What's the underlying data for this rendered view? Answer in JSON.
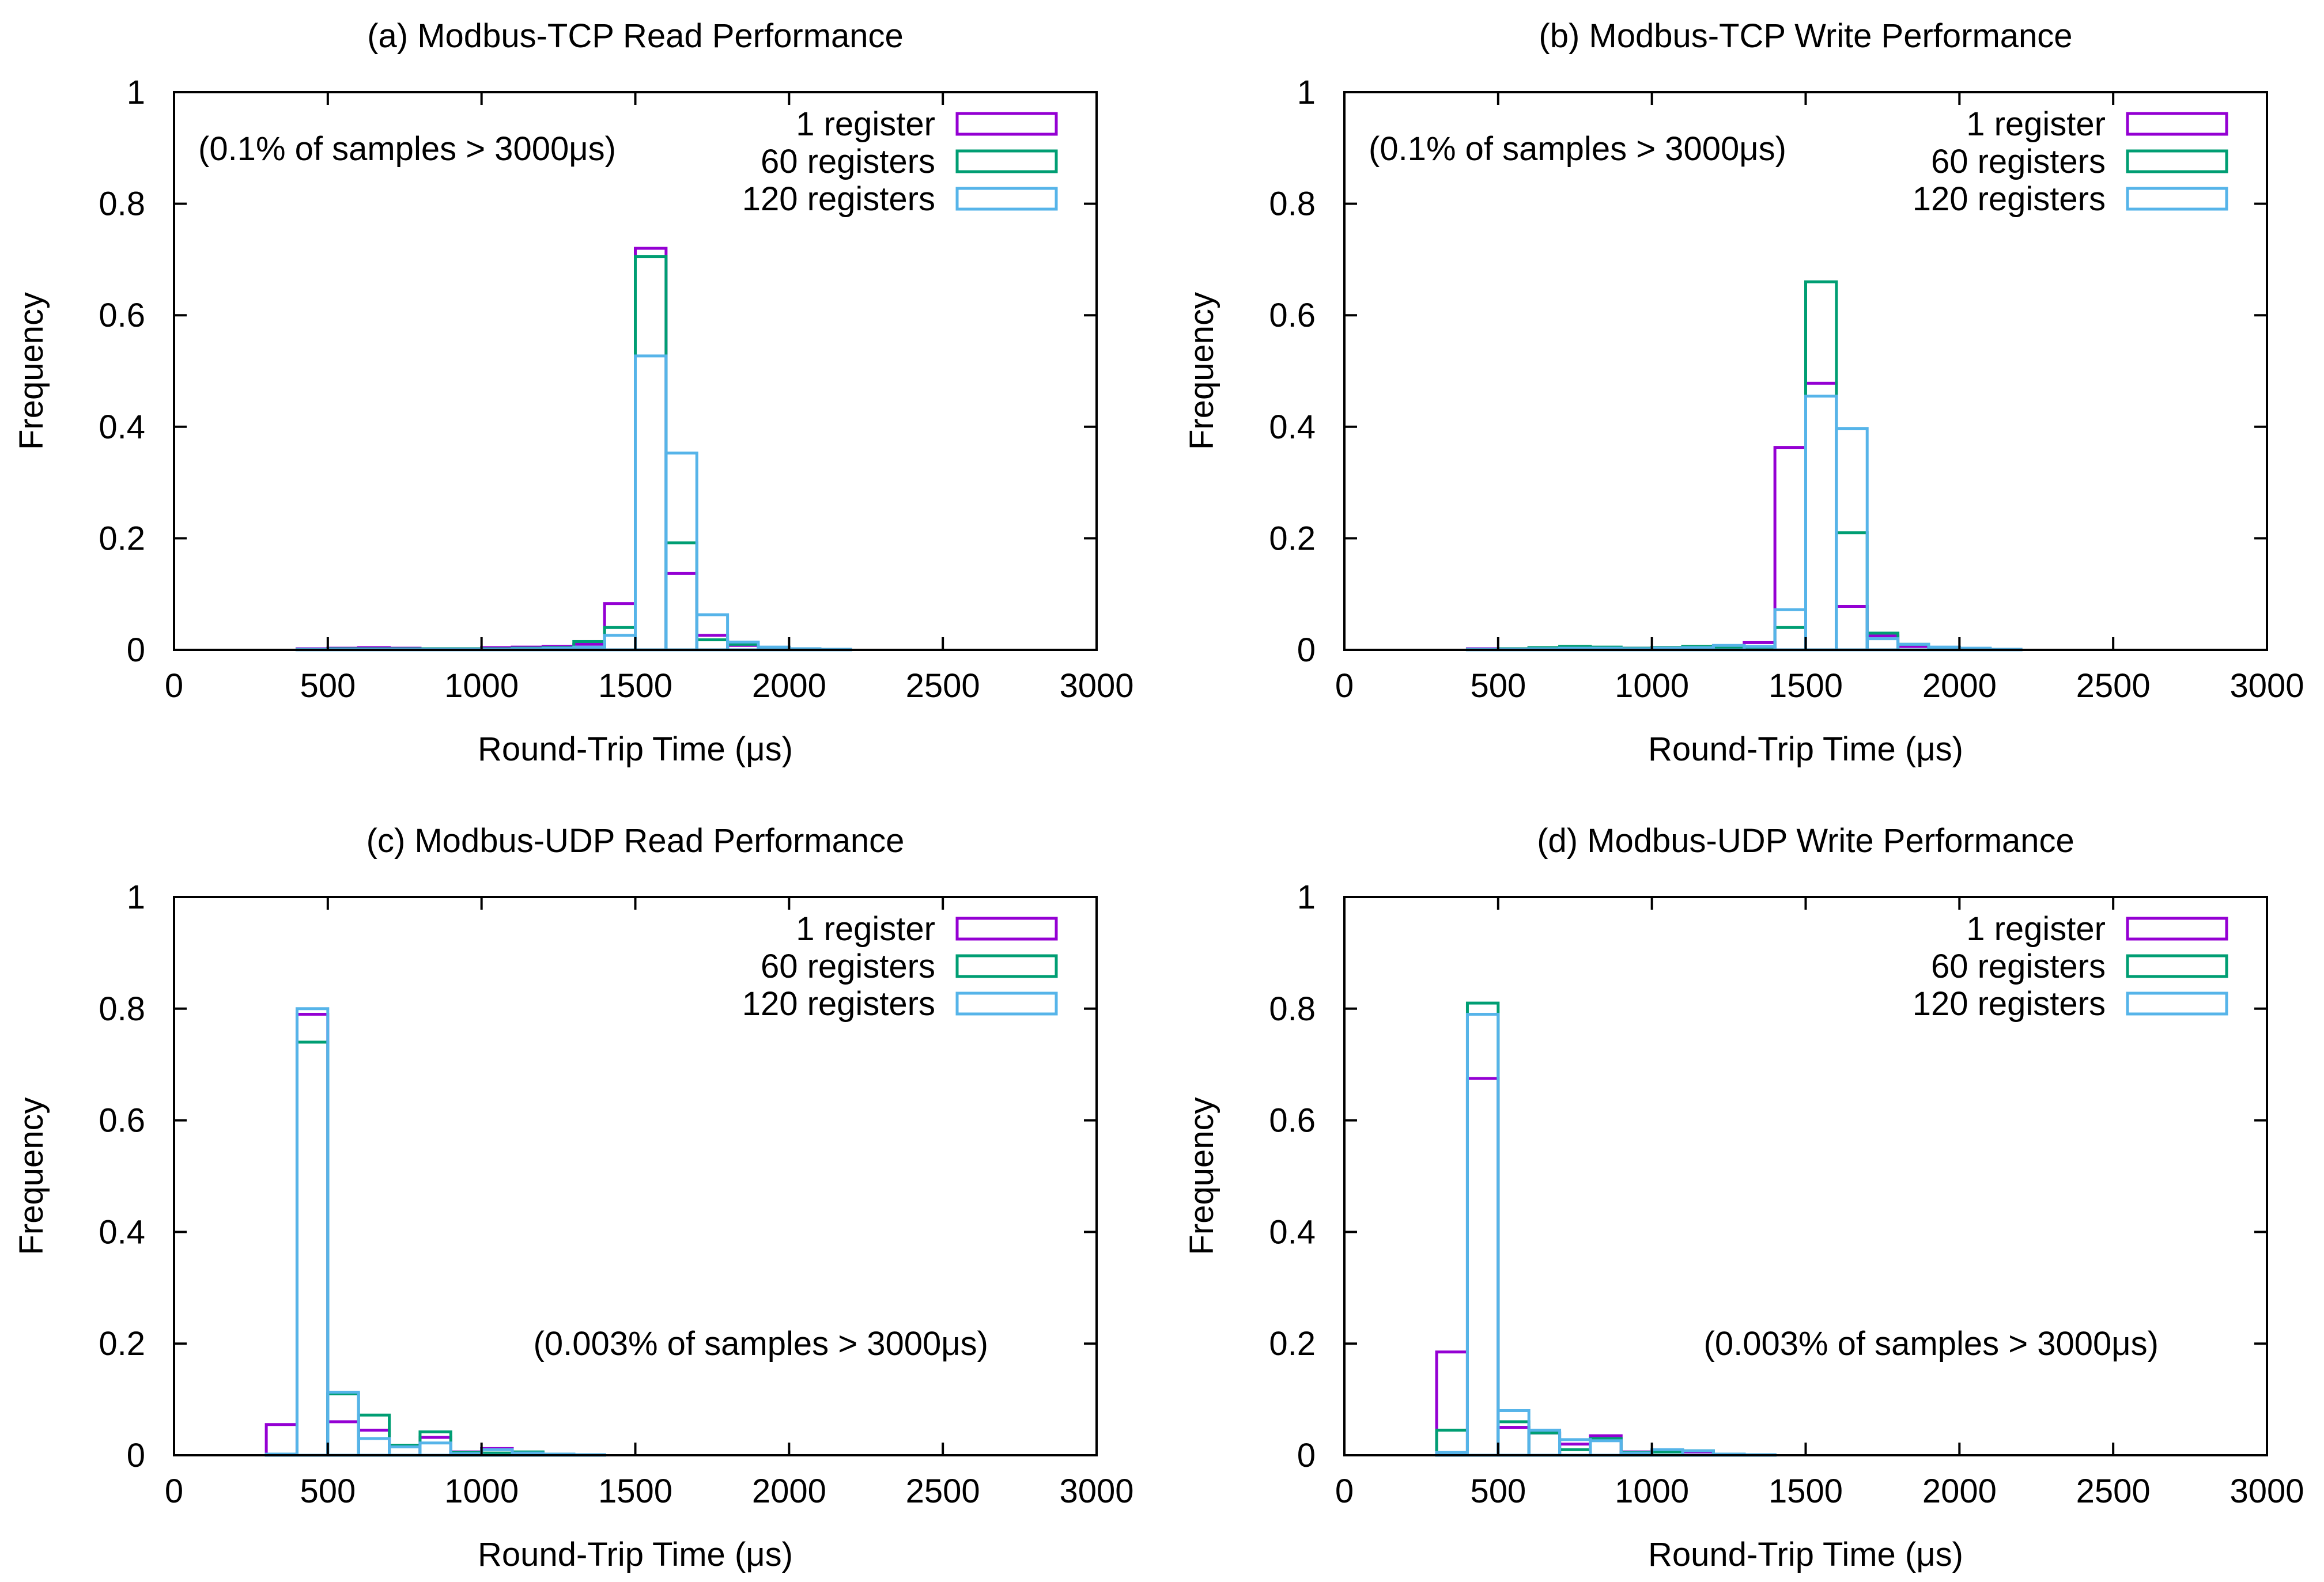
{
  "figure": {
    "colors": {
      "s1": "#9400d3",
      "s60": "#009e73",
      "s120": "#56b4e9"
    }
  },
  "chart_data": [
    {
      "type": "histogram",
      "title": "(a) Modbus-TCP Read Performance",
      "xlabel": "Round-Trip Time (μs)",
      "ylabel": "Frequency",
      "xlim": [
        0,
        3000
      ],
      "ylim": [
        0,
        1
      ],
      "xticks": [
        "0",
        "500",
        "1000",
        "1500",
        "2000",
        "2500",
        "3000"
      ],
      "yticks": [
        "0",
        "0.2",
        "0.4",
        "0.6",
        "0.8",
        "1"
      ],
      "legend_position": "top-right",
      "annotation": "(0.1% of samples > 3000μs)",
      "annotation_position": "top-left",
      "bin_width": 100,
      "bins": [
        400,
        500,
        600,
        700,
        800,
        900,
        1000,
        1100,
        1200,
        1300,
        1400,
        1500,
        1600,
        1700,
        1800,
        1900,
        2000,
        2100
      ],
      "series": [
        {
          "name": "1 register",
          "color": "#9400d3",
          "values": [
            0.002,
            0.003,
            0.004,
            0.003,
            0.002,
            0.002,
            0.004,
            0.005,
            0.006,
            0.01,
            0.083,
            0.72,
            0.137,
            0.026,
            0.008,
            0.004,
            0.002,
            0.001
          ]
        },
        {
          "name": "60 registers",
          "color": "#009e73",
          "values": [
            0.001,
            0.002,
            0.002,
            0.002,
            0.002,
            0.002,
            0.002,
            0.003,
            0.004,
            0.015,
            0.04,
            0.705,
            0.192,
            0.018,
            0.01,
            0.004,
            0.002,
            0.001
          ]
        },
        {
          "name": "120 registers",
          "color": "#56b4e9",
          "values": [
            0.001,
            0.001,
            0.001,
            0.001,
            0.001,
            0.001,
            0.001,
            0.002,
            0.003,
            0.005,
            0.026,
            0.527,
            0.353,
            0.063,
            0.014,
            0.005,
            0.002,
            0.001
          ]
        }
      ]
    },
    {
      "type": "histogram",
      "title": "(b) Modbus-TCP Write Performance",
      "xlabel": "Round-Trip Time (μs)",
      "ylabel": "Frequency",
      "xlim": [
        0,
        3000
      ],
      "ylim": [
        0,
        1
      ],
      "xticks": [
        "0",
        "500",
        "1000",
        "1500",
        "2000",
        "2500",
        "3000"
      ],
      "yticks": [
        "0",
        "0.2",
        "0.4",
        "0.6",
        "0.8",
        "1"
      ],
      "legend_position": "top-right",
      "annotation": "(0.1% of samples > 3000μs)",
      "annotation_position": "top-left",
      "bin_width": 100,
      "bins": [
        400,
        500,
        600,
        700,
        800,
        900,
        1000,
        1100,
        1200,
        1300,
        1400,
        1500,
        1600,
        1700,
        1800,
        1900,
        2000,
        2100
      ],
      "series": [
        {
          "name": "1 register",
          "color": "#9400d3",
          "values": [
            0.002,
            0.002,
            0.003,
            0.004,
            0.003,
            0.003,
            0.004,
            0.005,
            0.006,
            0.013,
            0.363,
            0.478,
            0.078,
            0.025,
            0.006,
            0.003,
            0.002,
            0.001
          ]
        },
        {
          "name": "60 registers",
          "color": "#009e73",
          "values": [
            0.001,
            0.002,
            0.004,
            0.006,
            0.005,
            0.003,
            0.004,
            0.006,
            0.005,
            0.005,
            0.04,
            0.66,
            0.21,
            0.03,
            0.01,
            0.004,
            0.002,
            0.001
          ]
        },
        {
          "name": "120 registers",
          "color": "#56b4e9",
          "values": [
            0.001,
            0.001,
            0.002,
            0.003,
            0.003,
            0.002,
            0.003,
            0.004,
            0.008,
            0.006,
            0.072,
            0.455,
            0.397,
            0.02,
            0.01,
            0.005,
            0.003,
            0.001
          ]
        }
      ]
    },
    {
      "type": "histogram",
      "title": "(c) Modbus-UDP Read Performance",
      "xlabel": "Round-Trip Time (μs)",
      "ylabel": "Frequency",
      "xlim": [
        0,
        3000
      ],
      "ylim": [
        0,
        1
      ],
      "xticks": [
        "0",
        "500",
        "1000",
        "1500",
        "2000",
        "2500",
        "3000"
      ],
      "yticks": [
        "0",
        "0.2",
        "0.4",
        "0.6",
        "0.8",
        "1"
      ],
      "legend_position": "top-right",
      "annotation": "(0.003% of samples > 3000μs)",
      "annotation_position": "middle-right",
      "bin_width": 100,
      "bins": [
        300,
        400,
        500,
        600,
        700,
        800,
        900,
        1000,
        1100,
        1200,
        1300
      ],
      "series": [
        {
          "name": "1 register",
          "color": "#9400d3",
          "values": [
            0.055,
            0.79,
            0.06,
            0.045,
            0.015,
            0.032,
            0.006,
            0.012,
            0.005,
            0.002,
            0.001
          ]
        },
        {
          "name": "60 registers",
          "color": "#009e73",
          "values": [
            0.002,
            0.74,
            0.11,
            0.072,
            0.018,
            0.042,
            0.005,
            0.004,
            0.006,
            0.002,
            0.001
          ]
        },
        {
          "name": "120 registers",
          "color": "#56b4e9",
          "values": [
            0.002,
            0.8,
            0.113,
            0.03,
            0.015,
            0.022,
            0.003,
            0.01,
            0.004,
            0.002,
            0.001
          ]
        }
      ]
    },
    {
      "type": "histogram",
      "title": "(d) Modbus-UDP Write Performance",
      "xlabel": "Round-Trip Time (μs)",
      "ylabel": "Frequency",
      "xlim": [
        0,
        3000
      ],
      "ylim": [
        0,
        1
      ],
      "xticks": [
        "0",
        "500",
        "1000",
        "1500",
        "2000",
        "2500",
        "3000"
      ],
      "yticks": [
        "0",
        "0.2",
        "0.4",
        "0.6",
        "0.8",
        "1"
      ],
      "legend_position": "top-right",
      "annotation": "(0.003% of samples > 3000μs)",
      "annotation_position": "middle-right",
      "bin_width": 100,
      "bins": [
        300,
        400,
        500,
        600,
        700,
        800,
        900,
        1000,
        1100,
        1200,
        1300
      ],
      "series": [
        {
          "name": "1 register",
          "color": "#9400d3",
          "values": [
            0.185,
            0.675,
            0.05,
            0.04,
            0.02,
            0.035,
            0.006,
            0.008,
            0.006,
            0.002,
            0.001
          ]
        },
        {
          "name": "60 registers",
          "color": "#009e73",
          "values": [
            0.045,
            0.81,
            0.06,
            0.04,
            0.01,
            0.03,
            0.005,
            0.006,
            0.008,
            0.002,
            0.001
          ]
        },
        {
          "name": "120 registers",
          "color": "#56b4e9",
          "values": [
            0.005,
            0.79,
            0.08,
            0.045,
            0.028,
            0.026,
            0.004,
            0.01,
            0.008,
            0.002,
            0.001
          ]
        }
      ]
    }
  ]
}
